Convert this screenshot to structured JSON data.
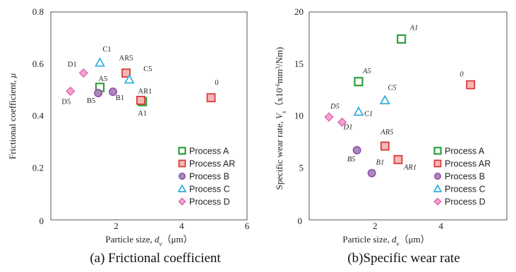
{
  "colors": {
    "A": "#2e9e3e",
    "AR": "#d93a3a",
    "B": "#8e45a8",
    "C": "#28a8dc",
    "D": "#e05aa8",
    "AR_fill": "#f4b8b6",
    "B_fill": "#a98ab8",
    "C_fill": "#ffffff",
    "D_fill": "#f2a3cf"
  },
  "chart_data": [
    {
      "type": "scatter",
      "caption": "(a) Frictional coefficient",
      "xlabel_main": "Particle size, ",
      "xlabel_var": "d",
      "xlabel_sub": "v",
      "xlabel_unit": "（μm）",
      "ylabel_main": "Frictional coefficient, ",
      "ylabel_var": "μ",
      "xlim": [
        0,
        6
      ],
      "ylim": [
        0,
        0.8
      ],
      "xticks": [
        "0",
        "2",
        "4",
        "6"
      ],
      "yticks": [
        "0.2",
        "0.4",
        "0.6",
        "0.8"
      ],
      "yticks_values": [
        0.2,
        0.4,
        0.6,
        0.8
      ],
      "origin_label": "0",
      "legend": [
        "Process A",
        "Process AR",
        "Process B",
        "Process C",
        "Process D"
      ],
      "points": [
        {
          "label": "A5",
          "group": "A",
          "x": 1.5,
          "y": 0.51
        },
        {
          "label": "A1",
          "group": "A",
          "x": 2.8,
          "y": 0.455
        },
        {
          "label": "AR5",
          "group": "AR",
          "x": 2.3,
          "y": 0.565
        },
        {
          "label": "AR1",
          "group": "AR",
          "x": 2.75,
          "y": 0.46
        },
        {
          "label": "0",
          "group": "AR",
          "x": 4.9,
          "y": 0.47
        },
        {
          "label": "B5",
          "group": "B",
          "x": 1.45,
          "y": 0.488
        },
        {
          "label": "B1",
          "group": "B",
          "x": 1.9,
          "y": 0.493
        },
        {
          "label": "C1",
          "group": "C",
          "x": 1.5,
          "y": 0.605
        },
        {
          "label": "C5",
          "group": "C",
          "x": 2.4,
          "y": 0.54
        },
        {
          "label": "D1",
          "group": "D",
          "x": 1.0,
          "y": 0.565
        },
        {
          "label": "D5",
          "group": "D",
          "x": 0.6,
          "y": 0.495
        }
      ]
    },
    {
      "type": "scatter",
      "caption": "(b)Specific wear rate",
      "xlabel_main": "Particle size, ",
      "xlabel_var": "d",
      "xlabel_sub": "v",
      "xlabel_unit": "（μm）",
      "ylabel_main": "Specific wear rate, ",
      "ylabel_var": "V",
      "ylabel_sub": "s",
      "ylabel_unit": "（x10",
      "ylabel_exp": "-6",
      "ylabel_unit2": "mm",
      "ylabel_exp2": "3",
      "ylabel_unit3": "/Nm)",
      "xlim": [
        0,
        6
      ],
      "ylim": [
        0,
        20
      ],
      "xticks": [
        "2",
        "4"
      ],
      "yticks": [
        "5",
        "10",
        "15",
        "20"
      ],
      "yticks_values": [
        5,
        10,
        15,
        20
      ],
      "origin_label": "0",
      "legend": [
        "Process A",
        "Process AR",
        "Process B",
        "Process C",
        "Process D"
      ],
      "points": [
        {
          "label": "A1",
          "group": "A",
          "x": 2.8,
          "y": 17.4
        },
        {
          "label": "A5",
          "group": "A",
          "x": 1.5,
          "y": 13.3
        },
        {
          "label": "0",
          "group": "AR",
          "x": 4.9,
          "y": 13.0
        },
        {
          "label": "AR5",
          "group": "AR",
          "x": 2.3,
          "y": 7.1
        },
        {
          "label": "AR1",
          "group": "AR",
          "x": 2.7,
          "y": 5.8
        },
        {
          "label": "B5",
          "group": "B",
          "x": 1.45,
          "y": 6.7
        },
        {
          "label": "B1",
          "group": "B",
          "x": 1.9,
          "y": 4.5
        },
        {
          "label": "C5",
          "group": "C",
          "x": 2.3,
          "y": 11.5
        },
        {
          "label": "C1",
          "group": "C",
          "x": 1.5,
          "y": 10.4
        },
        {
          "label": "D5",
          "group": "D",
          "x": 0.6,
          "y": 9.9
        },
        {
          "label": "D1",
          "group": "D",
          "x": 1.0,
          "y": 9.4
        }
      ]
    }
  ]
}
